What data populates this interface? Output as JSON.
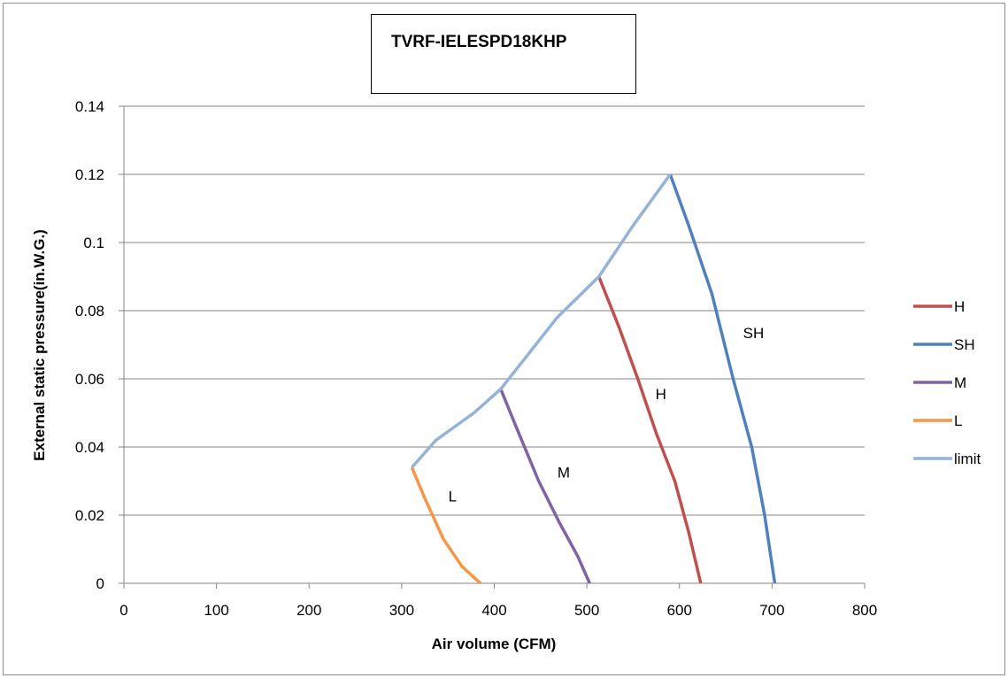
{
  "chart_data": {
    "type": "line",
    "title": "TVRF-IELESPD18KHP",
    "xlabel": "Air volume (CFM)",
    "ylabel": "External static pressure(in.W.G.)",
    "xlim": [
      0,
      800
    ],
    "ylim": [
      0,
      0.14
    ],
    "x_ticks": [
      "0",
      "100",
      "200",
      "300",
      "400",
      "500",
      "600",
      "700",
      "800"
    ],
    "y_ticks": [
      "0",
      "0.02",
      "0.04",
      "0.06",
      "0.08",
      "0.1",
      "0.12",
      "0.14"
    ],
    "x_tick_values": [
      0,
      100,
      200,
      300,
      400,
      500,
      600,
      700,
      800
    ],
    "y_tick_values": [
      0,
      0.02,
      0.04,
      0.06,
      0.08,
      0.1,
      0.12,
      0.14
    ],
    "grid": "horizontal",
    "legend_position": "right",
    "series": [
      {
        "name": "H",
        "color": "#C0504D",
        "points": [
          [
            513,
            0.09
          ],
          [
            535,
            0.075
          ],
          [
            555,
            0.06
          ],
          [
            575,
            0.044
          ],
          [
            595,
            0.03
          ],
          [
            610,
            0.015
          ],
          [
            623,
            0
          ]
        ]
      },
      {
        "name": "SH",
        "color": "#4F81BD",
        "points": [
          [
            590,
            0.12
          ],
          [
            610,
            0.105
          ],
          [
            635,
            0.085
          ],
          [
            658,
            0.06
          ],
          [
            678,
            0.04
          ],
          [
            692,
            0.02
          ],
          [
            703,
            0
          ]
        ]
      },
      {
        "name": "M",
        "color": "#8064A2",
        "points": [
          [
            407,
            0.057
          ],
          [
            425,
            0.045
          ],
          [
            448,
            0.03
          ],
          [
            470,
            0.018
          ],
          [
            490,
            0.008
          ],
          [
            503,
            0
          ]
        ]
      },
      {
        "name": "L",
        "color": "#F79646",
        "points": [
          [
            311,
            0.034
          ],
          [
            325,
            0.025
          ],
          [
            345,
            0.013
          ],
          [
            365,
            0.005
          ],
          [
            385,
            0
          ]
        ]
      },
      {
        "name": "limit",
        "color": "#95B3D7",
        "points": [
          [
            311,
            0.034
          ],
          [
            337,
            0.042
          ],
          [
            378,
            0.05
          ],
          [
            407,
            0.057
          ],
          [
            468,
            0.078
          ],
          [
            513,
            0.09
          ],
          [
            550,
            0.105
          ],
          [
            590,
            0.12
          ]
        ]
      }
    ],
    "annotations": [
      {
        "text": "SH",
        "x": 680,
        "y": 0.072
      },
      {
        "text": "H",
        "x": 580,
        "y": 0.054
      },
      {
        "text": "M",
        "x": 475,
        "y": 0.031
      },
      {
        "text": "L",
        "x": 355,
        "y": 0.024
      }
    ]
  }
}
